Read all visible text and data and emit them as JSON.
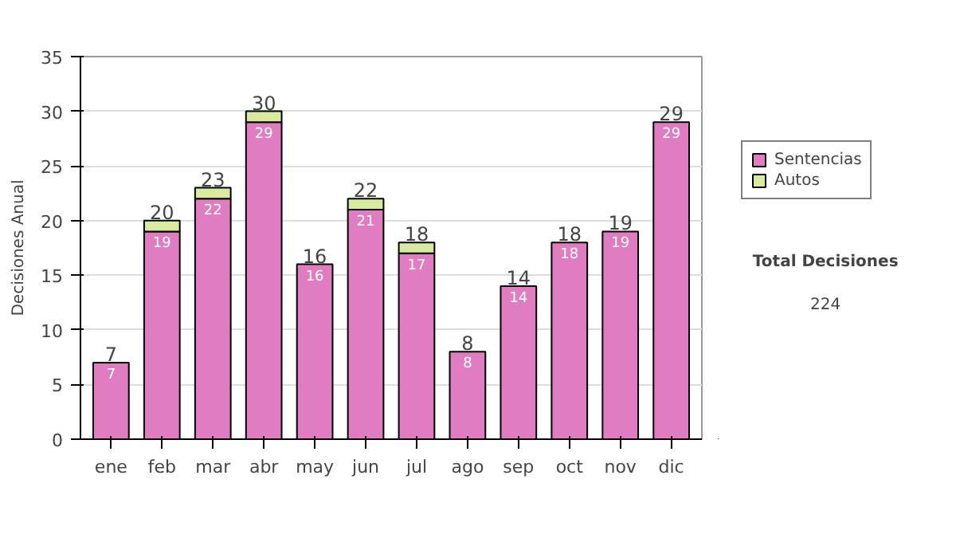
{
  "chart_data": {
    "type": "bar",
    "stacked": true,
    "ylabel": "Decisiones Anual",
    "categories": [
      "ene",
      "feb",
      "mar",
      "abr",
      "may",
      "jun",
      "jul",
      "ago",
      "sep",
      "oct",
      "nov",
      "dic"
    ],
    "series": [
      {
        "name": "Sentencias",
        "color": "#e07cc0",
        "values": [
          7,
          19,
          22,
          29,
          16,
          21,
          17,
          8,
          14,
          18,
          19,
          29
        ],
        "value_labels": [
          "7",
          "19",
          "22",
          "29",
          "16",
          "21",
          "17",
          "8",
          "14",
          "18",
          "19",
          "29"
        ]
      },
      {
        "name": "Autos",
        "color": "#d8eaa0",
        "values": [
          null,
          1,
          1,
          1,
          null,
          1,
          1,
          null,
          null,
          null,
          null,
          null
        ]
      }
    ],
    "totals": [
      "7",
      "20",
      "23",
      "30",
      "16",
      "22",
      "18",
      "8",
      "14",
      "18",
      "19",
      "29"
    ],
    "ylim": [
      0,
      35
    ],
    "yticks": [
      0,
      5,
      10,
      15,
      20,
      25,
      30,
      35
    ],
    "grid": "y",
    "legend": "right",
    "annotations": [
      "Total Decisiones",
      "224"
    ]
  }
}
